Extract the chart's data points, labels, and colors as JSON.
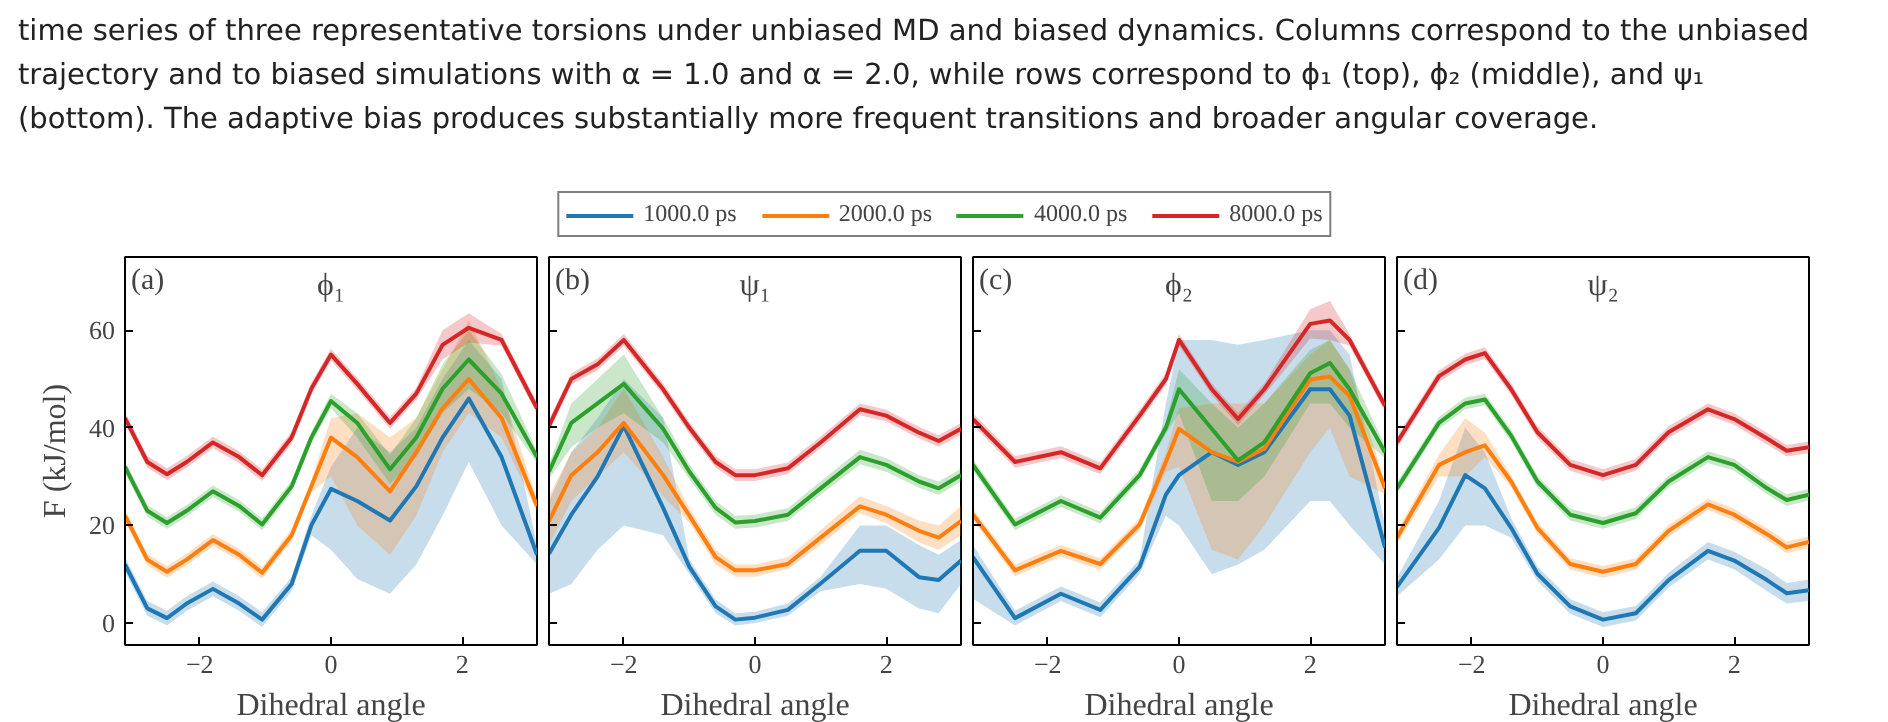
{
  "chart_data": [
    {
      "type": "line",
      "title": "ϕ₁",
      "xlabel": "Dihedral angle",
      "ylabel": "F (kJ/mol)",
      "legend": "top",
      "annotations": [
        "(a)",
        "time series of three representative torsions under unbiased MD and biased dynamics. Columns correspond to the unbiased",
        "trajectory and to biased simulations with α = 1.0 and α = 2.0, while rows correspond to ϕ₁ (top), ϕ₂ (middle), and ψ₁",
        "(bottom). The adaptive bias produces substantially more frequent transitions and broader angular coverage."
      ],
      "xlim": [
        -3.14,
        3.14
      ],
      "ylim": [
        -4.5,
        75
      ],
      "xticks": [
        -2,
        0,
        2
      ],
      "yticks": [
        0,
        20,
        40,
        60
      ],
      "x": [
        -3.14,
        -2.8,
        -2.5,
        -2.2,
        -1.8,
        -1.4,
        -1.05,
        -0.6,
        -0.3,
        0,
        0.4,
        0.9,
        1.3,
        1.7,
        2.1,
        2.6,
        3.14
      ],
      "series": [
        {
          "name": "1000.0 ps",
          "color": "#1f77b4",
          "values": [
            12,
            3,
            1,
            4,
            7,
            4,
            0.7,
            8,
            20,
            27.5,
            25,
            21,
            28,
            38,
            46,
            34,
            14
          ],
          "lower": [
            10.5,
            1.5,
            -0.5,
            2.5,
            5.5,
            2.5,
            -0.8,
            6.5,
            18,
            15,
            9,
            6,
            12,
            22,
            33,
            20,
            12
          ],
          "upper": [
            13.5,
            4.5,
            2.5,
            5.5,
            8.5,
            5.5,
            2.2,
            9.5,
            22,
            32,
            40,
            35,
            40,
            50,
            58,
            50,
            16
          ]
        },
        {
          "name": "2000.0 ps",
          "color": "#ff7f0e",
          "values": [
            22,
            13,
            10.5,
            13,
            17,
            14,
            10.3,
            18,
            28,
            38,
            34,
            27,
            35,
            44,
            50,
            42,
            24
          ],
          "lower": [
            20.8,
            11.8,
            9.3,
            11.8,
            15.8,
            12.8,
            9.1,
            16.8,
            26.8,
            30,
            20,
            14,
            22,
            35,
            43,
            38,
            22.8
          ],
          "upper": [
            23.2,
            14.2,
            11.7,
            14.2,
            18.2,
            15.2,
            11.5,
            19.2,
            29.2,
            42,
            43,
            38,
            42,
            52,
            62,
            48,
            25.2
          ]
        },
        {
          "name": "4000.0 ps",
          "color": "#2ca02c",
          "values": [
            32,
            23,
            20.5,
            23,
            27,
            24,
            20.2,
            28,
            38,
            45.5,
            41,
            31.5,
            38,
            48,
            54,
            47,
            34
          ],
          "lower": [
            30.8,
            21.8,
            19.3,
            21.8,
            25.8,
            22.8,
            19,
            26.8,
            36.8,
            44,
            38,
            28.5,
            34,
            43,
            48,
            43,
            32.8
          ],
          "upper": [
            33.2,
            24.2,
            21.7,
            24.2,
            28.2,
            25.2,
            21.4,
            29.2,
            39.2,
            47,
            43,
            34.5,
            42,
            53,
            60,
            51,
            35.2
          ]
        },
        {
          "name": "8000.0 ps",
          "color": "#d62728",
          "values": [
            42,
            33,
            30.5,
            33,
            37,
            34,
            30.3,
            38,
            48,
            55,
            49,
            41,
            47,
            57,
            60.5,
            58,
            44
          ],
          "lower": [
            40.8,
            31.8,
            29.3,
            31.8,
            35.8,
            32.8,
            29.1,
            36.8,
            46.8,
            53.8,
            47.8,
            39.8,
            45.8,
            54,
            57.5,
            56.8,
            42.8
          ],
          "upper": [
            43.2,
            34.2,
            31.7,
            34.2,
            38.2,
            35.2,
            31.5,
            39.2,
            49.2,
            56.2,
            50.2,
            42.2,
            48.2,
            60,
            63.5,
            59.2,
            45.2
          ]
        }
      ]
    },
    {
      "type": "line",
      "title": "ψ₁",
      "xlabel": "Dihedral angle",
      "annotations": [
        "(b)"
      ],
      "tick_labels": "x",
      "xlim": [
        -3.14,
        3.14
      ],
      "ylim": [
        -4.5,
        75
      ],
      "xticks": [
        -2,
        0,
        2
      ],
      "yticks": [
        0,
        20,
        40,
        60
      ],
      "x": [
        -3.14,
        -2.8,
        -2.4,
        -2,
        -1.4,
        -1,
        -0.6,
        -0.3,
        0,
        0.5,
        1,
        1.6,
        2,
        2.5,
        2.8,
        3.14
      ],
      "series": [
        {
          "color": "#1f77b4",
          "values": [
            14.2,
            22.2,
            30,
            40.4,
            23.6,
            11.5,
            3.4,
            0.7,
            1.1,
            2.7,
            8.1,
            14.8,
            14.8,
            9.4,
            8.8,
            12.8
          ],
          "lower": [
            6,
            8,
            15,
            20,
            18,
            10,
            2,
            -0.5,
            0,
            1.5,
            6.5,
            8,
            7,
            3,
            2,
            8
          ],
          "upper": [
            25,
            35,
            42,
            50,
            42,
            13,
            4.8,
            2,
            2.3,
            4,
            9.5,
            20,
            20,
            16,
            14,
            17
          ]
        },
        {
          "color": "#ff7f0e",
          "values": [
            20.9,
            30.3,
            35,
            41,
            30.3,
            22,
            13.5,
            10.8,
            10.8,
            12.1,
            17.5,
            23.9,
            22.2,
            18.9,
            17.5,
            20.9
          ],
          "lower": [
            16,
            25,
            30,
            35,
            26,
            20.5,
            12,
            9.5,
            9.5,
            11,
            16,
            22.5,
            20.5,
            16.5,
            15,
            18
          ],
          "upper": [
            26,
            35,
            40,
            48,
            34,
            23.5,
            15,
            12,
            12,
            13.5,
            19,
            26,
            24,
            21,
            20,
            24
          ]
        },
        {
          "color": "#2ca02c",
          "values": [
            31,
            41,
            45,
            49,
            39.8,
            31,
            23.6,
            20.6,
            20.9,
            22.2,
            27.6,
            34,
            32.4,
            29,
            27.6,
            30.3
          ],
          "lower": [
            29.5,
            36,
            40,
            43,
            37,
            29.5,
            22.2,
            19.3,
            19.6,
            20.9,
            26.3,
            32.5,
            31,
            27.7,
            26.3,
            29
          ],
          "upper": [
            32.5,
            45,
            50,
            55,
            42,
            32.5,
            25,
            22,
            22.2,
            23.5,
            29,
            35.5,
            33.8,
            30.3,
            29,
            31.6
          ]
        },
        {
          "color": "#d62728",
          "values": [
            40.4,
            50,
            53,
            58,
            47.9,
            40,
            33,
            30.3,
            30.3,
            31.7,
            37,
            43.8,
            42.5,
            39,
            37.3,
            39.8
          ],
          "lower": [
            39.2,
            48.8,
            51.8,
            56.8,
            46.7,
            38.8,
            31.8,
            29.1,
            29.1,
            30.5,
            35.8,
            42.6,
            41.3,
            37.8,
            36.1,
            38.6
          ],
          "upper": [
            41.6,
            51.2,
            54.2,
            59.2,
            49.1,
            41.2,
            34.2,
            31.5,
            31.5,
            32.9,
            38.2,
            45,
            43.7,
            40.2,
            38.5,
            41
          ]
        }
      ]
    },
    {
      "type": "line",
      "title": "ϕ₂",
      "xlabel": "Dihedral angle",
      "annotations": [
        "(c)"
      ],
      "tick_labels": "x",
      "xlim": [
        -3.14,
        3.14
      ],
      "ylim": [
        -4.5,
        75
      ],
      "xticks": [
        -2,
        0,
        2
      ],
      "yticks": [
        0,
        20,
        40,
        60
      ],
      "x": [
        -3.14,
        -2.5,
        -1.8,
        -1.2,
        -0.6,
        -0.2,
        0,
        0.5,
        0.9,
        1.3,
        2,
        2.3,
        2.6,
        3.14
      ],
      "series": [
        {
          "color": "#1f77b4",
          "values": [
            13.5,
            1,
            6,
            2.7,
            11.5,
            26.3,
            30.3,
            35,
            32.4,
            35,
            47.9,
            47.9,
            42.5,
            15.5
          ],
          "lower": [
            5,
            -0.5,
            4.5,
            1.2,
            10,
            22,
            20,
            10,
            12,
            15,
            25,
            25,
            20,
            12
          ],
          "upper": [
            16,
            2.5,
            7.5,
            4.2,
            13,
            45,
            58,
            58,
            57,
            58,
            60,
            60,
            55,
            20
          ]
        },
        {
          "color": "#ff7f0e",
          "values": [
            22.2,
            10.8,
            14.8,
            12.1,
            20.2,
            33,
            39.8,
            35,
            33,
            35.7,
            49.9,
            50.5,
            46.5,
            27.6
          ],
          "lower": [
            21,
            9.6,
            13.6,
            10.9,
            19,
            31,
            32,
            15,
            13,
            20,
            35,
            40,
            30,
            26.4
          ],
          "upper": [
            23.4,
            12,
            16,
            13.3,
            21.4,
            35,
            44,
            45,
            45,
            45,
            55,
            58,
            52,
            28.8
          ]
        },
        {
          "color": "#2ca02c",
          "values": [
            32.4,
            20.2,
            25,
            21.6,
            30.3,
            40,
            47.9,
            39.8,
            33.3,
            37,
            51.2,
            53.3,
            47.9,
            35
          ],
          "lower": [
            31.2,
            19,
            23.8,
            20.4,
            29.1,
            38.8,
            43,
            25,
            25,
            30,
            45,
            45,
            40,
            33.8
          ],
          "upper": [
            33.6,
            21.4,
            26.2,
            22.8,
            31.5,
            41.2,
            52,
            45,
            40,
            45,
            56,
            58,
            52,
            36.2
          ]
        },
        {
          "color": "#d62728",
          "values": [
            41.8,
            33,
            35,
            31.7,
            42.5,
            50,
            58,
            47.9,
            41.8,
            47.9,
            61.3,
            62,
            58,
            44.5
          ],
          "lower": [
            40.6,
            31.8,
            33.8,
            30.5,
            41.3,
            48.8,
            56.8,
            46.7,
            40.6,
            46.7,
            58.3,
            58,
            56.8,
            43.3
          ],
          "upper": [
            43,
            34.2,
            36.2,
            32.9,
            43.7,
            51.2,
            59.2,
            49.1,
            43,
            49.1,
            64.3,
            66,
            59.2,
            45.7
          ]
        }
      ]
    },
    {
      "type": "line",
      "title": "ψ₂",
      "xlabel": "Dihedral angle",
      "annotations": [
        "(d)"
      ],
      "tick_labels": "x",
      "xlim": [
        -3.14,
        3.14
      ],
      "ylim": [
        -4.5,
        75
      ],
      "xticks": [
        -2,
        0,
        2
      ],
      "yticks": [
        0,
        20,
        40,
        60
      ],
      "x": [
        -3.14,
        -2.5,
        -2.1,
        -1.8,
        -1.4,
        -1,
        -0.5,
        0,
        0.5,
        1,
        1.6,
        2,
        2.5,
        2.8,
        3.14
      ],
      "series": [
        {
          "color": "#1f77b4",
          "values": [
            7.4,
            19.5,
            30.3,
            27.6,
            19.5,
            10.1,
            3.4,
            0.7,
            2,
            8.8,
            14.8,
            12.8,
            8.8,
            6.1,
            6.7
          ],
          "lower": [
            5.5,
            13,
            20,
            20,
            17.5,
            8.6,
            1.9,
            -0.8,
            0.5,
            7.3,
            13,
            11,
            6.5,
            4,
            4.5
          ],
          "upper": [
            9.3,
            25,
            40,
            35,
            21.5,
            11.6,
            4.9,
            2.2,
            3.5,
            10.3,
            16.6,
            14.6,
            11,
            8.2,
            8.9
          ]
        },
        {
          "color": "#ff7f0e",
          "values": [
            17.5,
            32.4,
            35,
            36.4,
            29,
            19.5,
            12.1,
            10.5,
            12.1,
            18.9,
            24.3,
            22.2,
            18.2,
            15.5,
            16.6
          ],
          "lower": [
            16.3,
            30,
            30,
            34,
            27.8,
            18.3,
            10.9,
            9.3,
            10.9,
            17.7,
            23.1,
            21,
            17,
            14.3,
            15.4
          ],
          "upper": [
            18.7,
            34.5,
            42,
            39,
            30.2,
            20.7,
            13.3,
            11.7,
            13.3,
            20.1,
            25.5,
            23.4,
            19.4,
            16.7,
            17.8
          ]
        },
        {
          "color": "#2ca02c",
          "values": [
            27.6,
            41,
            45,
            45.8,
            38.4,
            29,
            22.2,
            20.5,
            22.5,
            29,
            34,
            32.4,
            27.6,
            25.2,
            26.3
          ],
          "lower": [
            26.4,
            39.8,
            43.8,
            44.6,
            37.2,
            27.8,
            21,
            19.3,
            21.3,
            27.8,
            32.8,
            31.2,
            26.4,
            24,
            25.1
          ],
          "upper": [
            28.8,
            42.2,
            46.2,
            47,
            39.6,
            30.2,
            23.4,
            21.7,
            23.7,
            30.2,
            35.2,
            33.6,
            28.8,
            26.4,
            27.5
          ]
        },
        {
          "color": "#d62728",
          "values": [
            37,
            50.6,
            54,
            55.3,
            47.9,
            39.1,
            32.4,
            30.3,
            32.4,
            39.1,
            43.8,
            41.8,
            37.8,
            35.3,
            36
          ],
          "lower": [
            35.8,
            49.4,
            52.8,
            54.1,
            46.7,
            37.9,
            31.2,
            29.1,
            31.2,
            37.9,
            42.6,
            40.6,
            36.6,
            34.1,
            34.8
          ],
          "upper": [
            38.2,
            51.8,
            55.2,
            56.5,
            49.1,
            40.3,
            33.6,
            31.5,
            33.6,
            40.3,
            45,
            43,
            39,
            36.5,
            37.2
          ]
        }
      ]
    }
  ]
}
